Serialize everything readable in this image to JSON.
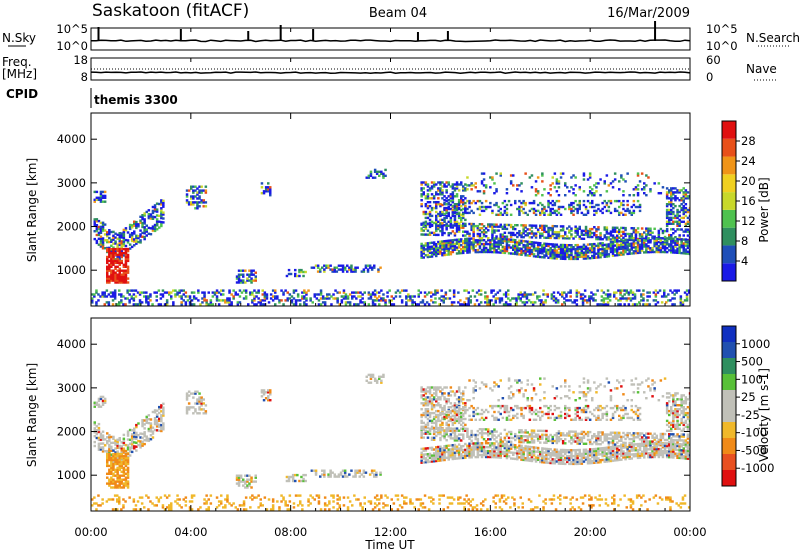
{
  "header": {
    "station": "Saskatoon (fitACF)",
    "beam": "Beam 04",
    "date": "16/Mar/2009"
  },
  "noise_panel": {
    "left_label": "N.Sky",
    "right_label": "N.Search",
    "left_ticks": [
      "10^5",
      "10^0"
    ],
    "right_ticks": [
      "10^5",
      "10^0"
    ]
  },
  "freq_panel": {
    "left_label_1": "Freq.",
    "left_label_2": "[MHz]",
    "right_label": "Nave",
    "left_ticks": [
      "18",
      "8"
    ],
    "right_ticks": [
      "60",
      "0"
    ]
  },
  "cpid": {
    "label": "CPID",
    "value": "themis 3300"
  },
  "colors": {
    "power_scale": [
      "#1a1ae6",
      "#1f4fb8",
      "#2f8f5f",
      "#4fc24f",
      "#c8d82a",
      "#f0d020",
      "#f09418",
      "#e8501a",
      "#e01010"
    ],
    "velocity_scale": [
      "#e01010",
      "#e85020",
      "#f08a18",
      "#f0b82a",
      "#c0c0b8",
      "#c0c0b8",
      "#58c038",
      "#2f8f5f",
      "#2050b0",
      "#1030c0"
    ]
  },
  "chart_data": [
    {
      "type": "heatmap",
      "name": "power",
      "ylabel": "Slant Range [km]",
      "yticks": [
        1000,
        2000,
        3000,
        4000
      ],
      "ylim": [
        180,
        4600
      ],
      "xlim": [
        0,
        24
      ],
      "colorbar": {
        "label": "Power [dB]",
        "ticks": [
          "4",
          "8",
          "12",
          "16",
          "20",
          "24",
          "28"
        ],
        "range": [
          0,
          30
        ]
      },
      "regions": [
        {
          "t0": 0.1,
          "t1": 2.9,
          "r0": 1000,
          "r1": 2700,
          "description_value": 14
        },
        {
          "t0": 0.6,
          "t1": 1.4,
          "r0": 700,
          "r1": 1500,
          "description_value": 28
        },
        {
          "t0": 13.2,
          "t1": 24.0,
          "r0": 1300,
          "r1": 3000,
          "description_value": 16
        },
        {
          "t0": 0.0,
          "t1": 24.0,
          "r0": 200,
          "r1": 500,
          "description_value": 8
        }
      ]
    },
    {
      "type": "heatmap",
      "name": "velocity",
      "ylabel": "Slant Range [km]",
      "yticks": [
        1000,
        2000,
        3000,
        4000
      ],
      "ylim": [
        180,
        4600
      ],
      "xlim": [
        0,
        24
      ],
      "xticks": [
        "00:00",
        "04:00",
        "08:00",
        "12:00",
        "16:00",
        "20:00",
        "00:00"
      ],
      "xlabel": "Time UT",
      "colorbar": {
        "label": "Velocity [m s-1]",
        "ticks": [
          "1000",
          "500",
          "100",
          "25",
          "-25",
          "-100",
          "-500",
          "-1000"
        ]
      },
      "regions": [
        {
          "t0": 0.1,
          "t1": 2.9,
          "r0": 1000,
          "r1": 2700,
          "description_value": 0
        },
        {
          "t0": 0.6,
          "t1": 1.4,
          "r0": 700,
          "r1": 1500,
          "description_value": -300
        },
        {
          "t0": 13.2,
          "t1": 24.0,
          "r0": 1300,
          "r1": 3000,
          "description_value": 0
        }
      ]
    }
  ]
}
